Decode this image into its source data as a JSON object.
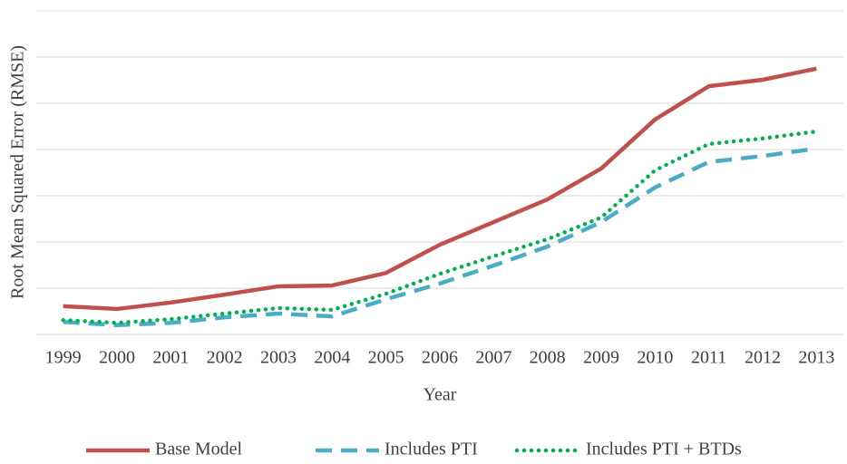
{
  "chart_data": {
    "type": "line",
    "y_label": "Root Mean Squared Error (RMSE)",
    "x_label": "Year",
    "categories": [
      "1999",
      "2000",
      "2001",
      "2002",
      "2003",
      "2004",
      "2005",
      "2006",
      "2007",
      "2008",
      "2009",
      "2010",
      "2011",
      "2012",
      "2013"
    ],
    "series": [
      {
        "name": "Base Model",
        "color": "#c0504d",
        "dash": "solid",
        "values": [
          0.61,
          0.55,
          0.69,
          0.86,
          1.04,
          1.06,
          1.33,
          1.94,
          2.43,
          2.92,
          3.59,
          4.65,
          5.37,
          5.51,
          5.75
        ]
      },
      {
        "name": "Includes PTI",
        "color": "#4bacc6",
        "dash": "dashed",
        "values": [
          0.27,
          0.2,
          0.25,
          0.37,
          0.45,
          0.39,
          0.76,
          1.1,
          1.49,
          1.9,
          2.43,
          3.18,
          3.73,
          3.86,
          4.02
        ]
      },
      {
        "name": "Includes PTI + BTDs",
        "color": "#00b050",
        "dash": "dotted",
        "values": [
          0.31,
          0.25,
          0.33,
          0.45,
          0.57,
          0.53,
          0.88,
          1.31,
          1.69,
          2.06,
          2.53,
          3.55,
          4.12,
          4.24,
          4.39
        ]
      }
    ],
    "ylim": [
      0,
      7
    ],
    "yticks": [
      0,
      1,
      2,
      3,
      4,
      5,
      6,
      7
    ],
    "grid": true,
    "legend": "bottom"
  }
}
